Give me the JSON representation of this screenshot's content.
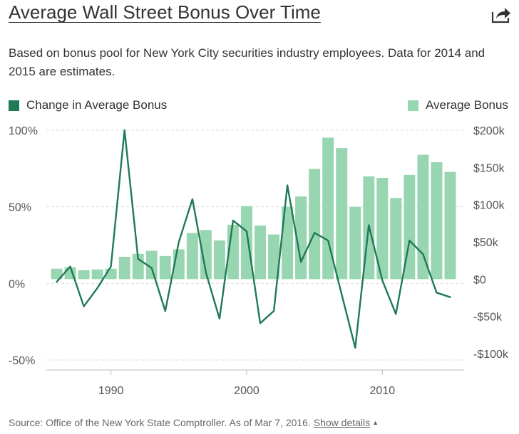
{
  "title": "Average Wall Street Bonus Over Time",
  "subtitle": "Based on bonus pool for New York City securities industry employees. Data for 2014 and 2015 are estimates.",
  "share_icon": "share-arrow-icon",
  "source": {
    "text": "Source: Office of the New York State Comptroller. As of Mar 7, 2016.",
    "link_label": "Show details",
    "link_icon": "caret-up-icon"
  },
  "colors": {
    "line": "#1f7a55",
    "bar": "#98d6b1",
    "grid": "#dddddd",
    "axis_text": "#555555"
  },
  "chart_data": {
    "type": "bar",
    "legend": [
      {
        "label": "Change in Average Bonus",
        "color": "#1f7a55",
        "placement": "top-left"
      },
      {
        "label": "Average Bonus",
        "color": "#98d6b1",
        "placement": "top-right"
      }
    ],
    "x": [
      1986,
      1987,
      1988,
      1989,
      1990,
      1991,
      1992,
      1993,
      1994,
      1995,
      1996,
      1997,
      1998,
      1999,
      2000,
      2001,
      2002,
      2003,
      2004,
      2005,
      2006,
      2007,
      2008,
      2009,
      2010,
      2011,
      2012,
      2013,
      2014,
      2015
    ],
    "x_ticks": [
      "1990",
      "2000",
      "2010"
    ],
    "x_tick_values": [
      1990,
      2000,
      2010
    ],
    "series": [
      {
        "name": "Average Bonus",
        "type": "bar",
        "axis": "right",
        "values": [
          14000,
          16000,
          12000,
          13000,
          14000,
          30000,
          34000,
          38000,
          31000,
          40000,
          62000,
          66000,
          52000,
          73000,
          98000,
          72000,
          60000,
          97000,
          111000,
          148000,
          190000,
          176000,
          97000,
          138000,
          136000,
          109000,
          140000,
          167000,
          157000,
          144000
        ]
      },
      {
        "name": "Change in Average Bonus",
        "type": "line",
        "axis": "left",
        "values": [
          1,
          11,
          -15,
          -3,
          11,
          100,
          16,
          10,
          -18,
          27,
          55,
          7,
          -23,
          41,
          34,
          -26,
          -18,
          64,
          14,
          33,
          28,
          -7,
          -42,
          38,
          2,
          -20,
          28,
          19,
          -6,
          -9
        ]
      }
    ],
    "y_left": {
      "ticks": [
        "100%",
        "50%",
        "0%",
        "-50%"
      ],
      "tick_values": [
        100,
        50,
        0,
        -50
      ],
      "ylim": [
        -50,
        100
      ]
    },
    "y_right": {
      "ticks": [
        "$200k",
        "$150k",
        "$100k",
        "$50k",
        "$0",
        "-$50k",
        "-$100k"
      ],
      "tick_values": [
        200000,
        150000,
        100000,
        50000,
        0,
        -50000,
        -100000
      ],
      "ylim": [
        -100000,
        200000
      ]
    },
    "xlim": [
      1985.5,
      2015.5
    ],
    "grid": true
  }
}
